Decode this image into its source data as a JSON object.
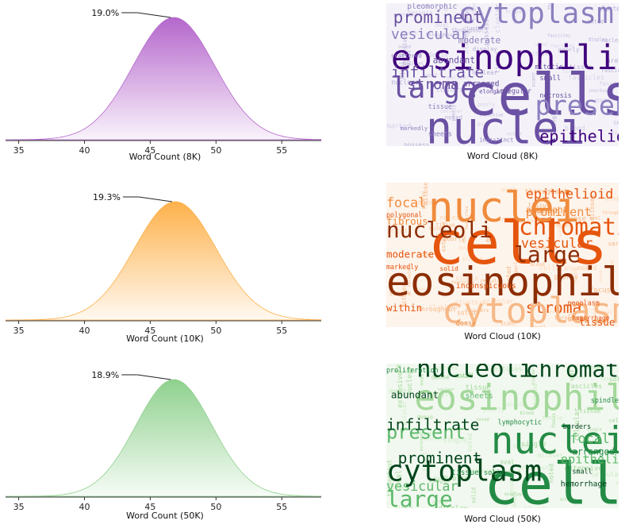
{
  "chart_data": [
    {
      "type": "area",
      "panel": "distribution",
      "xlabel": "Word Count (8K)",
      "ylabel": "",
      "xlim": [
        34,
        58
      ],
      "xticks": [
        35,
        40,
        45,
        50,
        55
      ],
      "mean": 46.8,
      "std": 3.1,
      "peak_label": "19.0%",
      "color": "#b567cc",
      "grid": false
    },
    {
      "type": "area",
      "panel": "distribution",
      "xlabel": "Word Count (10K)",
      "ylabel": "",
      "xlim": [
        34,
        58
      ],
      "xticks": [
        35,
        40,
        45,
        50,
        55
      ],
      "mean": 46.9,
      "std": 3.1,
      "peak_label": "19.3%",
      "color": "#fdb14b",
      "grid": false
    },
    {
      "type": "area",
      "panel": "distribution",
      "xlabel": "Word Count (50K)",
      "ylabel": "",
      "xlim": [
        34,
        58
      ],
      "xticks": [
        35,
        40,
        45,
        50,
        55
      ],
      "mean": 46.8,
      "std": 2.9,
      "peak_label": "18.9%",
      "color": "#8fd18e",
      "grid": false
    }
  ],
  "wordclouds": [
    {
      "caption": "Word Cloud (8K)",
      "palette": "purples",
      "background": "#f4f2f8",
      "words": [
        {
          "text": "eosinophilic",
          "weight": 1.0,
          "shade": 0
        },
        {
          "text": "cells",
          "weight": 0.95,
          "shade": 1
        },
        {
          "text": "nuclei",
          "weight": 0.7,
          "shade": 1
        },
        {
          "text": "cytoplasm",
          "weight": 0.55,
          "shade": 2
        },
        {
          "text": "large",
          "weight": 0.45,
          "shade": 1
        },
        {
          "text": "present",
          "weight": 0.42,
          "shade": 2
        },
        {
          "text": "prominent",
          "weight": 0.3,
          "shade": 1
        },
        {
          "text": "epithelioid",
          "weight": 0.28,
          "shade": 0
        },
        {
          "text": "infiltrate",
          "weight": 0.27,
          "shade": 1
        },
        {
          "text": "stroma",
          "weight": 0.24,
          "shade": 1
        },
        {
          "text": "vesicular",
          "weight": 0.2,
          "shade": 2
        },
        {
          "text": "abundant",
          "weight": 0.12,
          "shade": 1
        },
        {
          "text": "moderate",
          "weight": 0.12,
          "shade": 2
        },
        {
          "text": "pleomorphic",
          "weight": 0.1,
          "shade": 2
        },
        {
          "text": "arranged",
          "weight": 0.1,
          "shade": 1
        },
        {
          "text": "small",
          "weight": 0.1,
          "shade": 1
        },
        {
          "text": "necrosis",
          "weight": 0.08,
          "shade": 1
        },
        {
          "text": "mitotic",
          "weight": 0.08,
          "shade": 1
        },
        {
          "text": "tissue",
          "weight": 0.08,
          "shade": 2
        },
        {
          "text": "sheets",
          "weight": 0.08,
          "shade": 2
        },
        {
          "text": "irregular",
          "weight": 0.08,
          "shade": 1
        },
        {
          "text": "elongated",
          "weight": 0.07,
          "shade": 1
        },
        {
          "text": "markedly",
          "weight": 0.07,
          "shade": 2
        },
        {
          "text": "scattered",
          "weight": 0.07,
          "shade": 2
        },
        {
          "text": "indistinct",
          "weight": 0.07,
          "shade": 2
        }
      ]
    },
    {
      "caption": "Word Cloud (10K)",
      "palette": "oranges",
      "background": "#fdf4ec",
      "words": [
        {
          "text": "cells",
          "weight": 1.0,
          "shade": 1
        },
        {
          "text": "eosinophilic",
          "weight": 0.9,
          "shade": 0
        },
        {
          "text": "nuclei",
          "weight": 0.6,
          "shade": 2
        },
        {
          "text": "nucleoli",
          "weight": 0.42,
          "shade": 0
        },
        {
          "text": "chromatin",
          "weight": 0.4,
          "shade": 1
        },
        {
          "text": "large",
          "weight": 0.35,
          "shade": 0
        },
        {
          "text": "stroma",
          "weight": 0.32,
          "shade": 1
        },
        {
          "text": "cytoplasm",
          "weight": 0.45,
          "shade": 3
        },
        {
          "text": "epithelioid",
          "weight": 0.22,
          "shade": 1
        },
        {
          "text": "vesicular",
          "weight": 0.22,
          "shade": 1
        },
        {
          "text": "prominent",
          "weight": 0.2,
          "shade": 2
        },
        {
          "text": "focal",
          "weight": 0.18,
          "shade": 2
        },
        {
          "text": "fibrous",
          "weight": 0.14,
          "shade": 2
        },
        {
          "text": "moderate",
          "weight": 0.14,
          "shade": 1
        },
        {
          "text": "within",
          "weight": 0.14,
          "shade": 1
        },
        {
          "text": "tissue",
          "weight": 0.12,
          "shade": 1
        },
        {
          "text": "abundant",
          "weight": 0.12,
          "shade": 2
        },
        {
          "text": "polygonal",
          "weight": 0.08,
          "shade": 1
        },
        {
          "text": "inconspicuous",
          "weight": 0.08,
          "shade": 1
        },
        {
          "text": "neoplasm",
          "weight": 0.08,
          "shade": 1
        },
        {
          "text": "hemorrhage",
          "weight": 0.07,
          "shade": 1
        },
        {
          "text": "markedly",
          "weight": 0.08,
          "shade": 1
        },
        {
          "text": "solid",
          "weight": 0.07,
          "shade": 1
        },
        {
          "text": "dense",
          "weight": 0.07,
          "shade": 2
        }
      ]
    },
    {
      "caption": "Word Cloud (50K)",
      "palette": "greens",
      "background": "#f1f8ef",
      "words": [
        {
          "text": "cells",
          "weight": 1.0,
          "shade": 1
        },
        {
          "text": "nuclei",
          "weight": 0.8,
          "shade": 1
        },
        {
          "text": "eosinophilic",
          "weight": 0.75,
          "shade": 3
        },
        {
          "text": "cytoplasm",
          "weight": 0.55,
          "shade": 0
        },
        {
          "text": "nucleoli",
          "weight": 0.45,
          "shade": 0
        },
        {
          "text": "chromatin",
          "weight": 0.42,
          "shade": 0
        },
        {
          "text": "large",
          "weight": 0.4,
          "shade": 2
        },
        {
          "text": "present",
          "weight": 0.35,
          "shade": 2
        },
        {
          "text": "infiltrate",
          "weight": 0.2,
          "shade": 0
        },
        {
          "text": "prominent",
          "weight": 0.18,
          "shade": 0
        },
        {
          "text": "epithelioid",
          "weight": 0.17,
          "shade": 2
        },
        {
          "text": "vesicular",
          "weight": 0.17,
          "shade": 2
        },
        {
          "text": "focal",
          "weight": 0.16,
          "shade": 2
        },
        {
          "text": "abundant",
          "weight": 0.12,
          "shade": 0
        },
        {
          "text": "arranged",
          "weight": 0.12,
          "shade": 1
        },
        {
          "text": "sheets",
          "weight": 0.1,
          "shade": 2
        },
        {
          "text": "hemorrhage",
          "weight": 0.08,
          "shade": 0
        },
        {
          "text": "lymphocytic",
          "weight": 0.08,
          "shade": 1
        },
        {
          "text": "tissue",
          "weight": 0.1,
          "shade": 1
        },
        {
          "text": "proliferation",
          "weight": 0.07,
          "shade": 1
        },
        {
          "text": "spindle",
          "weight": 0.07,
          "shade": 1
        },
        {
          "text": "small",
          "weight": 0.08,
          "shade": 0
        },
        {
          "text": "solid",
          "weight": 0.07,
          "shade": 1
        },
        {
          "text": "borders",
          "weight": 0.07,
          "shade": 0
        }
      ]
    }
  ]
}
